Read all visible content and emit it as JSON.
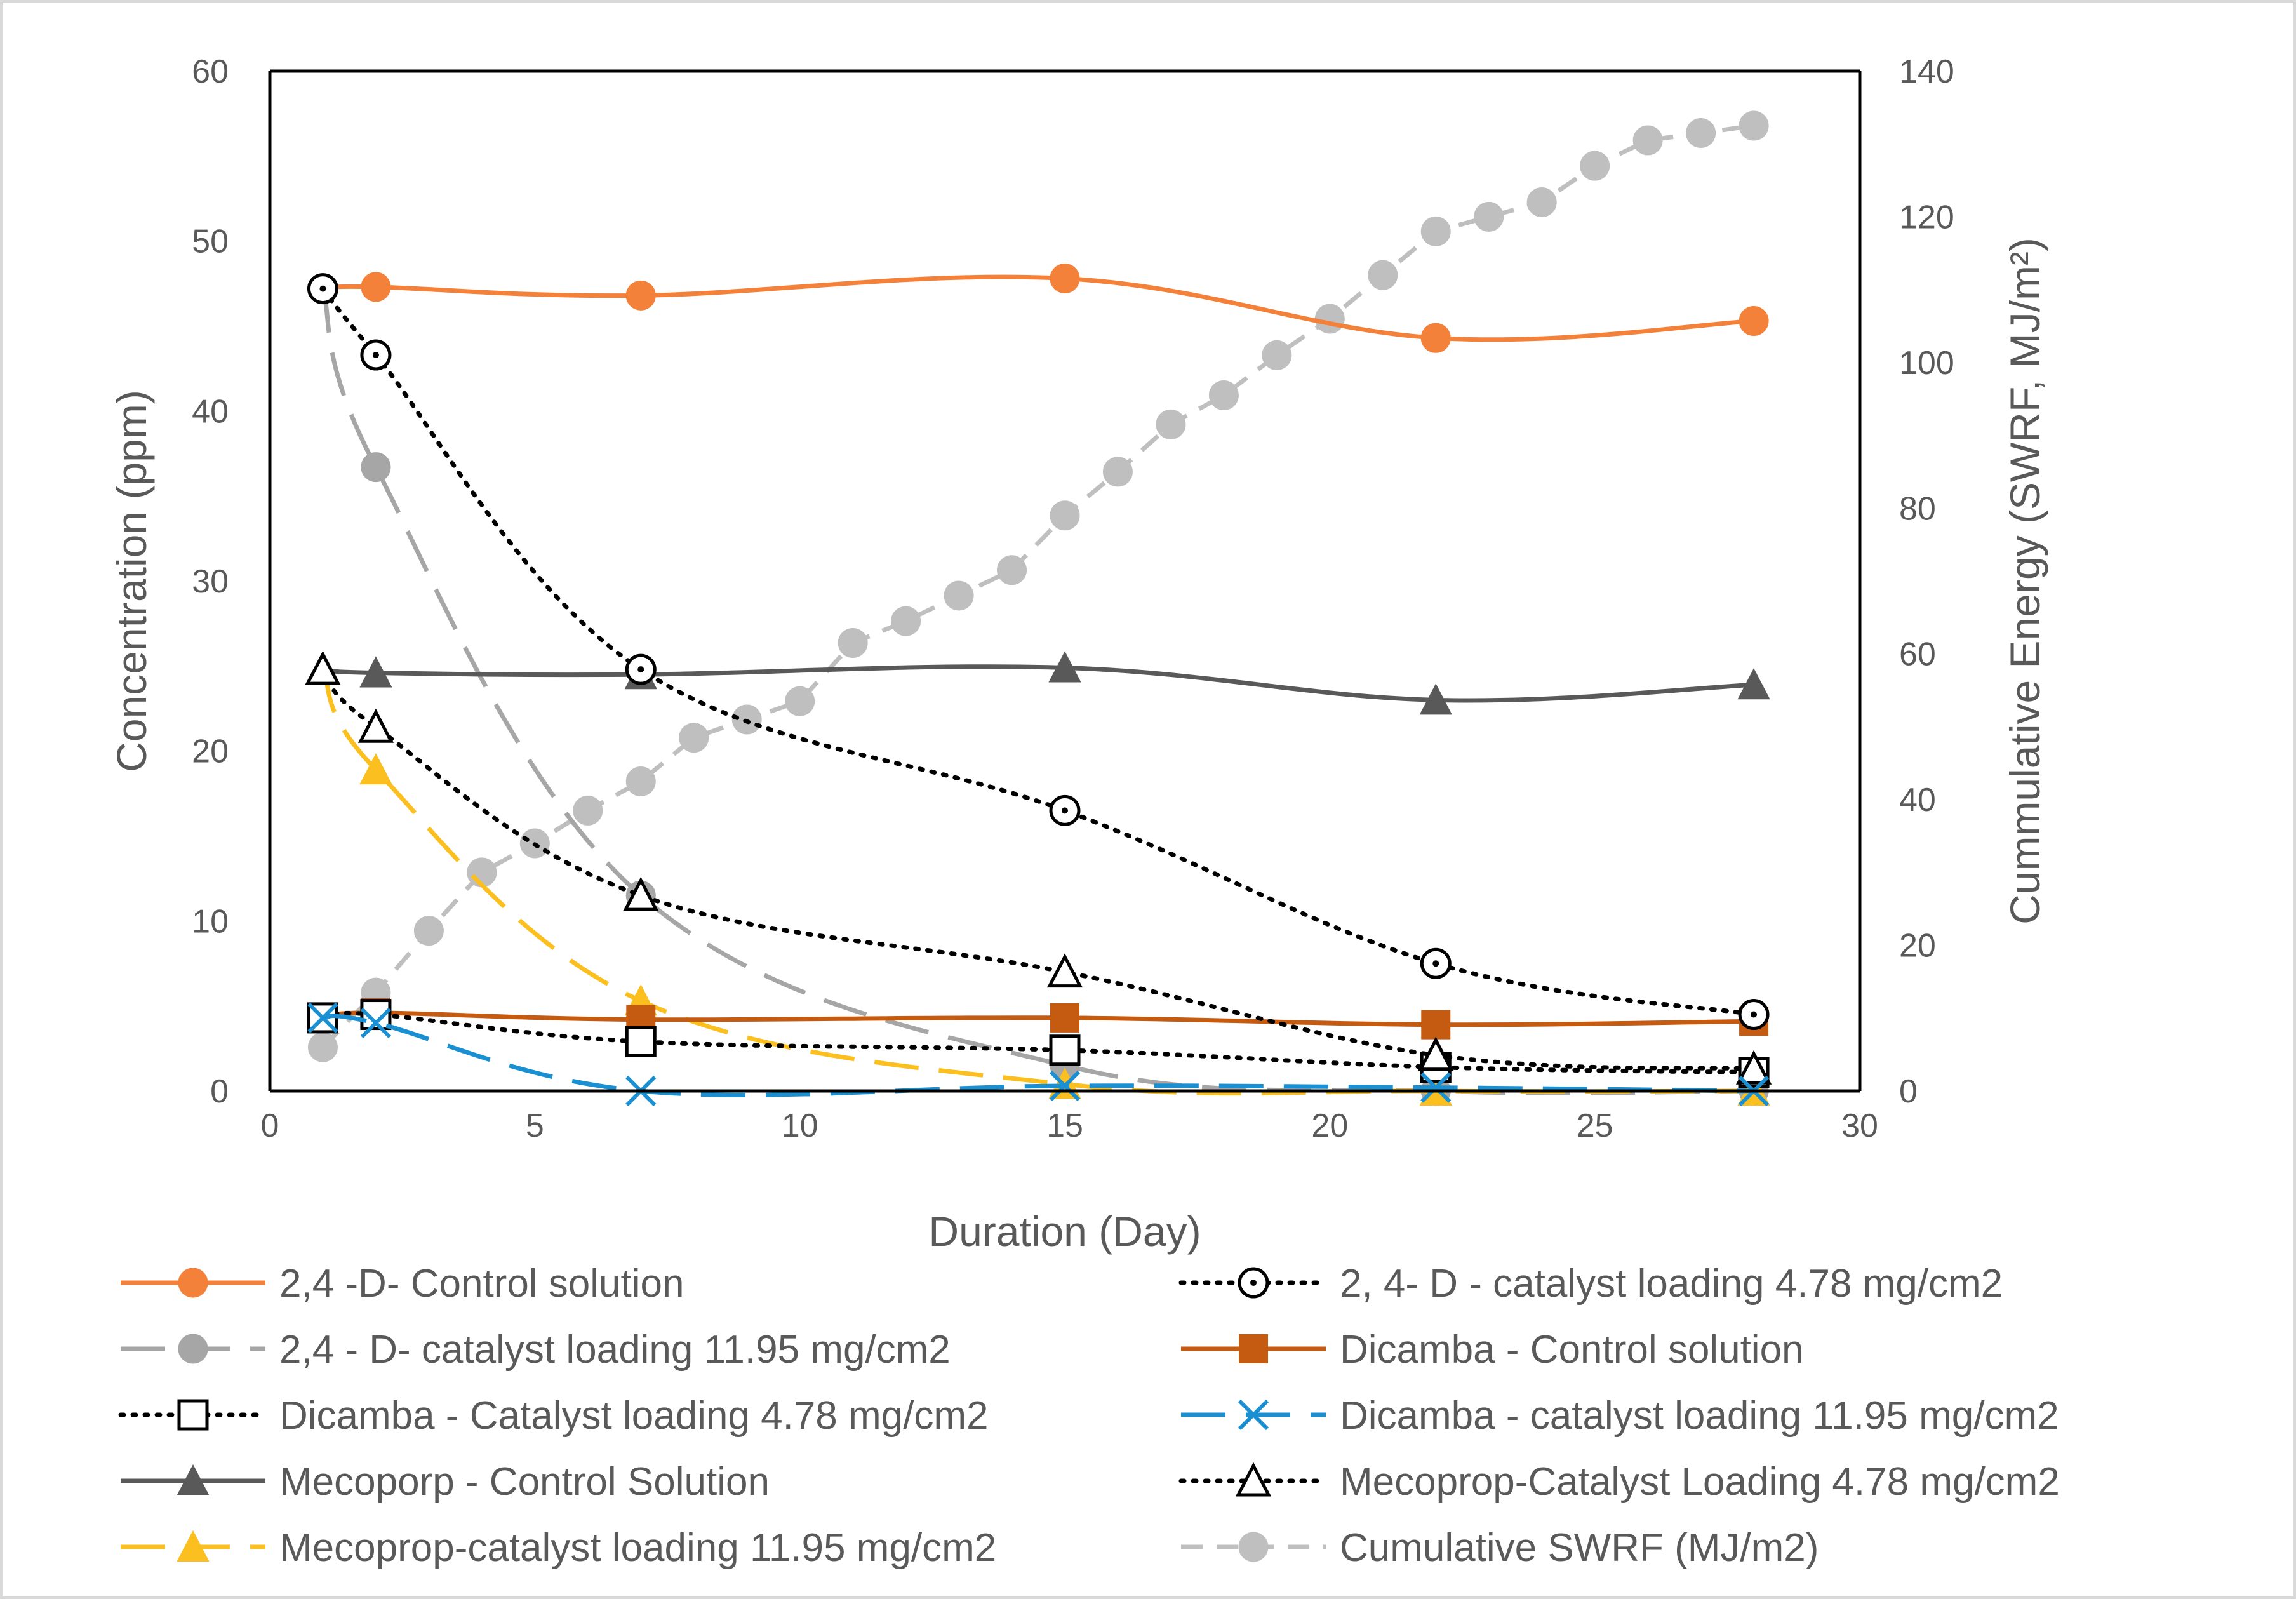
{
  "chart_data": {
    "type": "line",
    "title": "",
    "xlabel": "Duration (Day)",
    "ylabel_left": "Concentration (ppm)",
    "ylabel_right": "Cummulative Energy (SWRF, MJ/m²)",
    "xlim": [
      0,
      30
    ],
    "ylim_left": [
      0,
      60
    ],
    "ylim_right": [
      0,
      140
    ],
    "x_ticks": [
      0,
      5,
      10,
      15,
      20,
      25,
      30
    ],
    "y_ticks_left": [
      0,
      10,
      20,
      30,
      40,
      50,
      60
    ],
    "y_ticks_right": [
      0,
      20,
      40,
      60,
      80,
      100,
      120,
      140
    ],
    "grid": false,
    "legend_position": "bottom",
    "series": [
      {
        "name": "2,4 -D- Control solution",
        "axis": "left",
        "color": "#f4813a",
        "marker": "circle-filled",
        "dash": "solid",
        "smooth": true,
        "x": [
          1,
          2,
          7,
          15,
          22,
          28
        ],
        "y": [
          47.2,
          47.3,
          46.8,
          47.8,
          44.3,
          45.3
        ]
      },
      {
        "name": "2, 4- D - catalyst loading 4.78 mg/cm2",
        "axis": "left",
        "color": "#000000",
        "marker": "circle-open-dot",
        "dash": "dot",
        "smooth": true,
        "x": [
          1,
          2,
          7,
          15,
          22,
          28
        ],
        "y": [
          47.2,
          43.3,
          24.8,
          16.5,
          7.5,
          4.5
        ]
      },
      {
        "name": "2,4 - D- catalyst loading 11.95 mg/cm2",
        "axis": "left",
        "color": "#a6a6a6",
        "marker": "circle-filled",
        "dash": "longdash",
        "smooth": true,
        "x": [
          1,
          2,
          7,
          15,
          22,
          28
        ],
        "y": [
          47.2,
          36.7,
          11.5,
          1.5,
          0,
          0
        ]
      },
      {
        "name": "Dicamba - Control solution",
        "axis": "left",
        "color": "#c55a11",
        "marker": "square-filled",
        "dash": "solid",
        "smooth": true,
        "x": [
          1,
          2,
          7,
          15,
          22,
          28
        ],
        "y": [
          4.3,
          4.6,
          4.2,
          4.3,
          3.9,
          4.1
        ]
      },
      {
        "name": "Dicamba - Catalyst loading 4.78 mg/cm2",
        "axis": "left",
        "color": "#000000",
        "marker": "square-open",
        "dash": "dot",
        "smooth": true,
        "x": [
          1,
          2,
          7,
          15,
          22,
          28
        ],
        "y": [
          4.3,
          4.5,
          2.9,
          2.4,
          1.4,
          1.1
        ]
      },
      {
        "name": "Dicamba - catalyst loading 11.95 mg/cm2",
        "axis": "left",
        "color": "#1a8fd1",
        "marker": "x",
        "dash": "longdash",
        "smooth": true,
        "x": [
          1,
          2,
          7,
          15,
          22,
          28
        ],
        "y": [
          4.3,
          4.0,
          0,
          0.3,
          0.2,
          0
        ]
      },
      {
        "name": "Mecoporp - Control Solution",
        "axis": "left",
        "color": "#595959",
        "marker": "triangle-filled",
        "dash": "solid",
        "smooth": true,
        "x": [
          1,
          2,
          7,
          15,
          22,
          28
        ],
        "y": [
          24.8,
          24.6,
          24.5,
          24.9,
          23.0,
          23.9
        ]
      },
      {
        "name": "Mecoprop-Catalyst Loading 4.78 mg/cm2",
        "axis": "left",
        "color": "#000000",
        "marker": "triangle-open",
        "dash": "dot",
        "smooth": true,
        "x": [
          1,
          2,
          7,
          15,
          22,
          28
        ],
        "y": [
          24.8,
          21.4,
          11.5,
          7.0,
          2.1,
          1.3
        ]
      },
      {
        "name": "Mecoprop-catalyst loading 11.95 mg/cm2",
        "axis": "left",
        "color": "#fbbf1f",
        "marker": "triangle-filled",
        "dash": "longdash",
        "smooth": true,
        "x": [
          1,
          2,
          7,
          15,
          22,
          28
        ],
        "y": [
          24.8,
          18.9,
          5.3,
          0.4,
          0,
          0
        ]
      },
      {
        "name": "Cumulative SWRF (MJ/m2)",
        "axis": "right",
        "color": "#bfbfbf",
        "marker": "circle-filled",
        "dash": "dash",
        "smooth": false,
        "x": [
          1,
          2,
          3,
          4,
          5,
          6,
          7,
          8,
          9,
          10,
          11,
          12,
          13,
          14,
          15,
          16,
          17,
          18,
          19,
          20,
          21,
          22,
          23,
          24,
          25,
          26,
          27,
          28
        ],
        "y": [
          6,
          13.5,
          22,
          30,
          34,
          38.5,
          42.5,
          48.5,
          51,
          53.5,
          61.5,
          64.5,
          68,
          71.5,
          79,
          85,
          91.5,
          95.5,
          101,
          106,
          112,
          118,
          120,
          122,
          127,
          130.5,
          131.5,
          132.5
        ]
      }
    ]
  }
}
